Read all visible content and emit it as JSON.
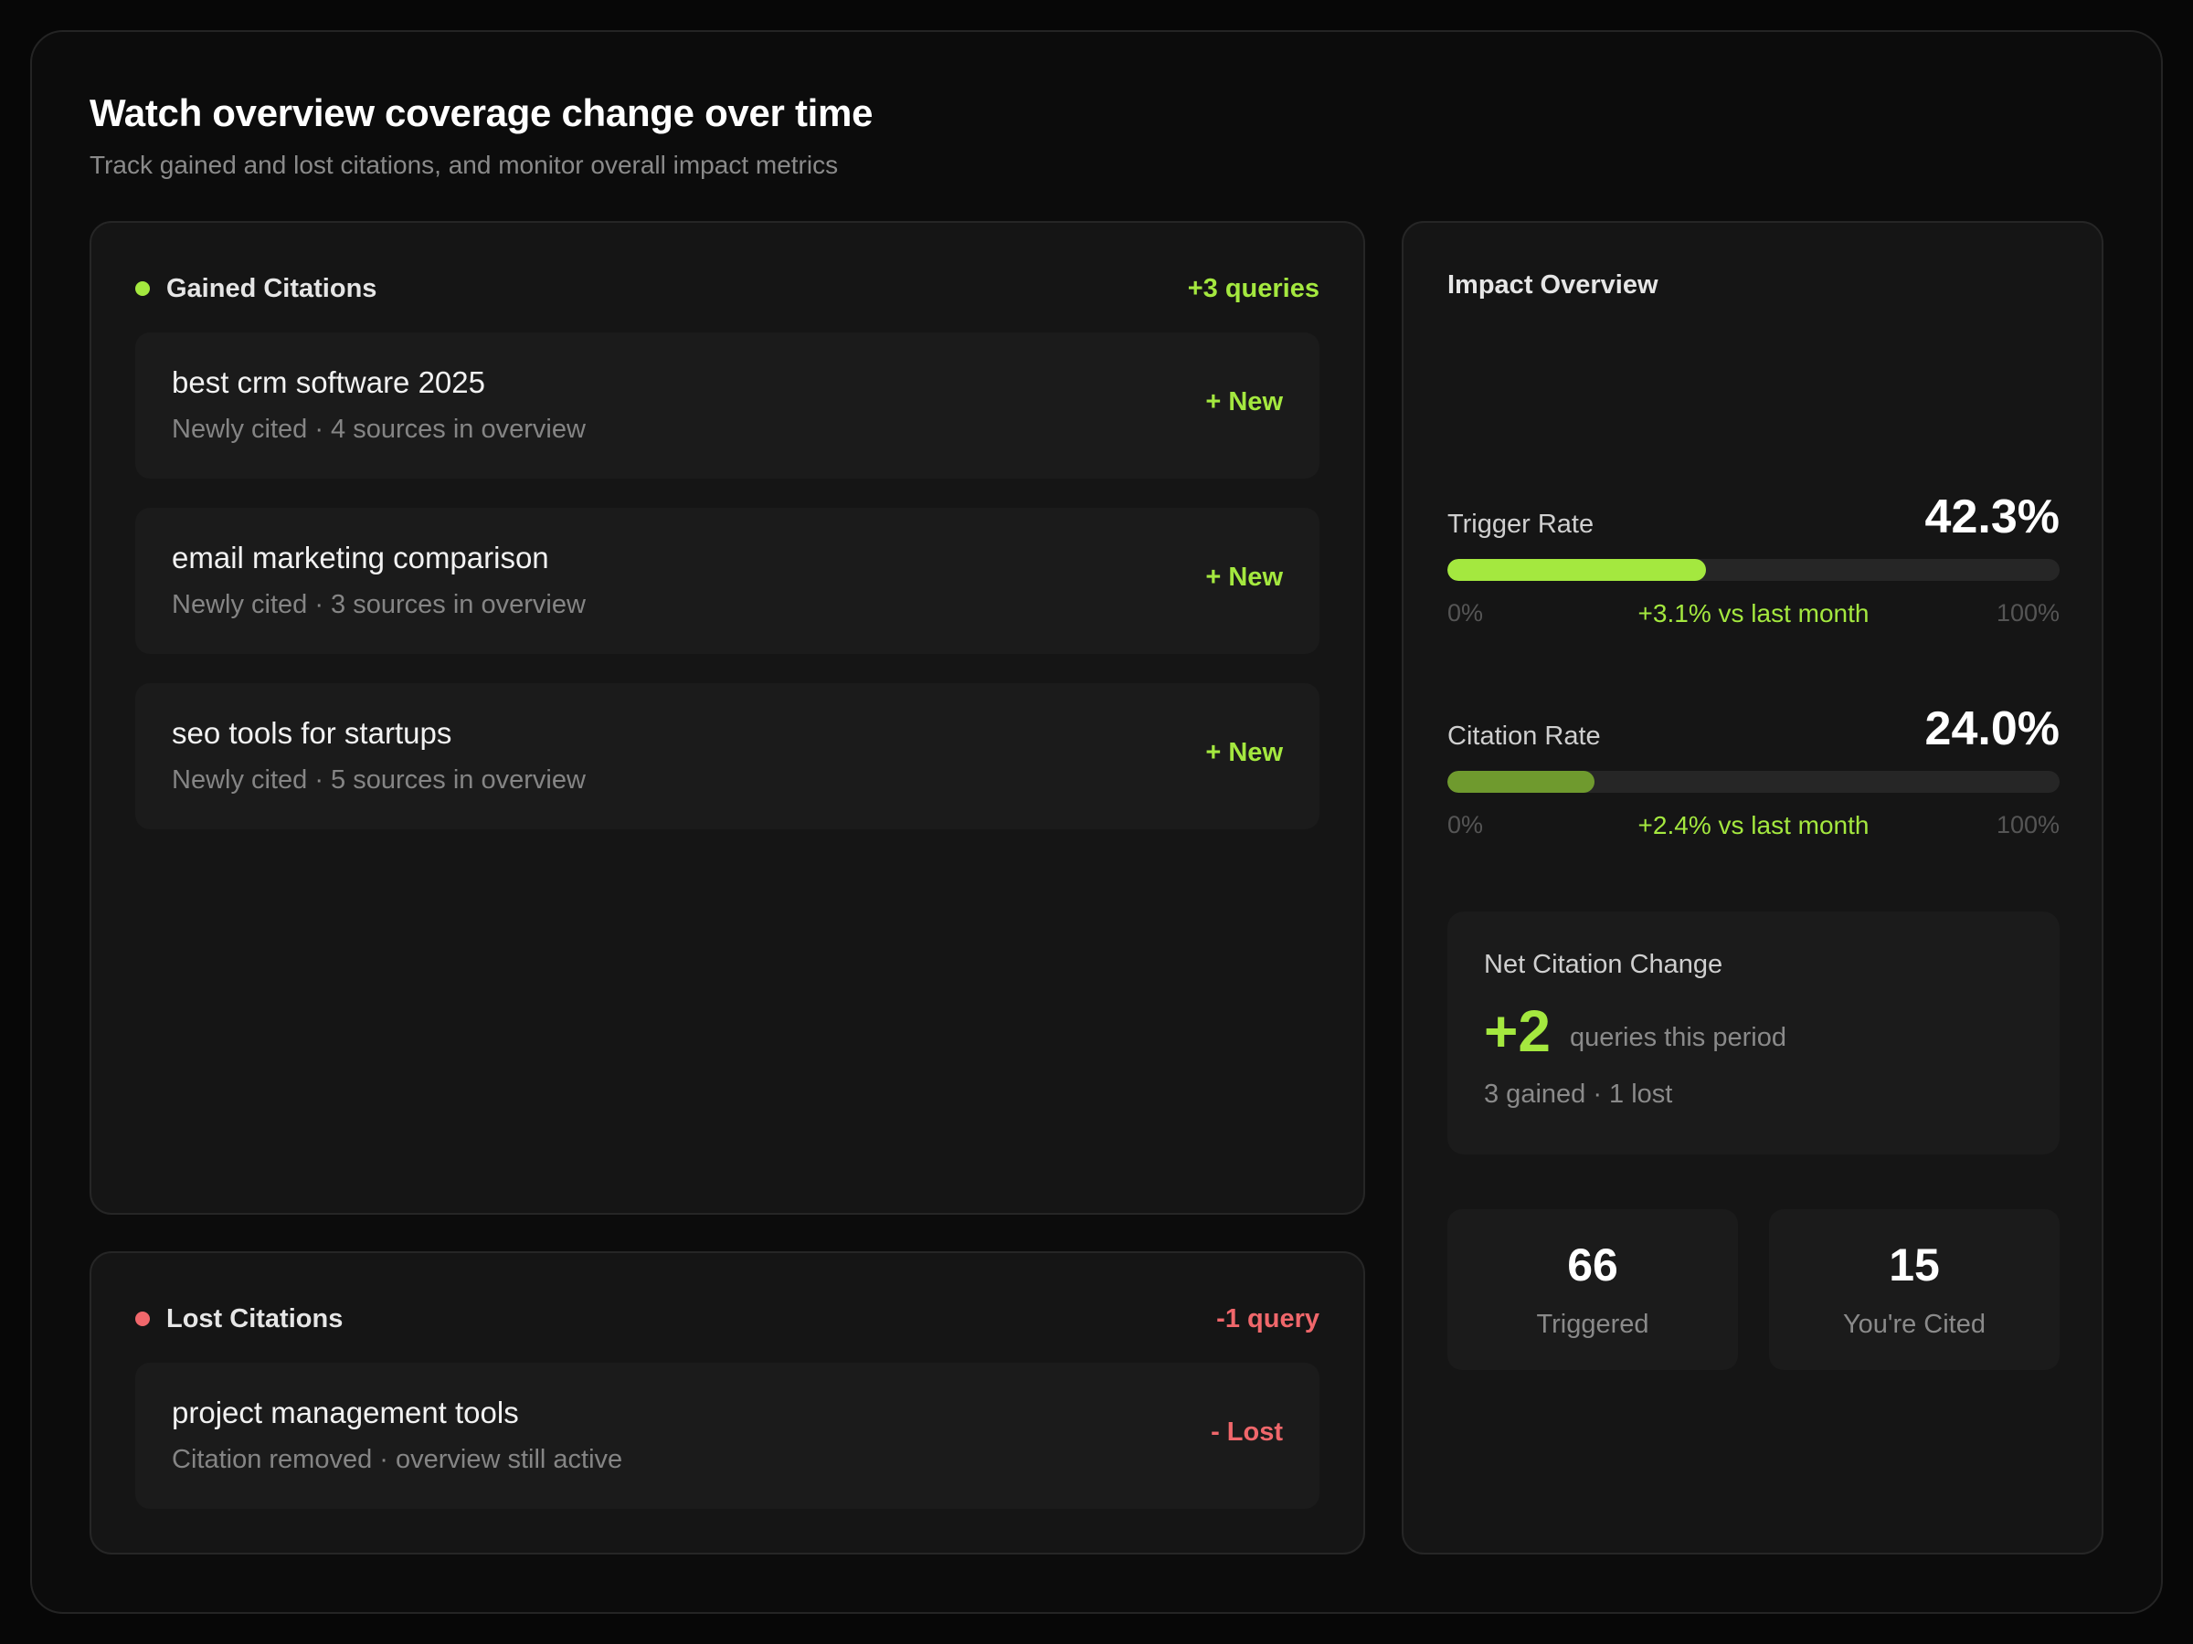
{
  "header": {
    "title": "Watch overview coverage change over time",
    "subtitle": "Track gained and lost citations, and monitor overall impact metrics"
  },
  "gained": {
    "title": "Gained Citations",
    "count": "+3 queries",
    "items": [
      {
        "query": "best crm software 2025",
        "meta": "Newly cited · 4 sources in overview",
        "tag": "+ New"
      },
      {
        "query": "email marketing comparison",
        "meta": "Newly cited · 3 sources in overview",
        "tag": "+ New"
      },
      {
        "query": "seo tools for startups",
        "meta": "Newly cited · 5 sources in overview",
        "tag": "+ New"
      }
    ]
  },
  "lost": {
    "title": "Lost Citations",
    "count": "-1 query",
    "items": [
      {
        "query": "project management tools",
        "meta": "Citation removed · overview still active",
        "tag": "- Lost"
      }
    ]
  },
  "impact": {
    "title": "Impact Overview",
    "trigger_rate": {
      "label": "Trigger Rate",
      "value": "42.3%",
      "fraction": 0.423,
      "min": "0%",
      "max": "100%",
      "delta": "+3.1% vs last month",
      "color": "#a4e83f"
    },
    "citation_rate": {
      "label": "Citation Rate",
      "value": "24.0%",
      "fraction": 0.24,
      "min": "0%",
      "max": "100%",
      "delta": "+2.4% vs last month",
      "color": "#6f9a2e"
    },
    "net": {
      "label": "Net Citation Change",
      "value": "+2",
      "value_caption": "queries this period",
      "detail": "3 gained · 1 lost"
    },
    "stats": [
      {
        "value": "66",
        "label": "Triggered"
      },
      {
        "value": "15",
        "label": "You're Cited"
      }
    ]
  },
  "colors": {
    "accent_green": "#a4e83f",
    "accent_red": "#f0676b"
  }
}
